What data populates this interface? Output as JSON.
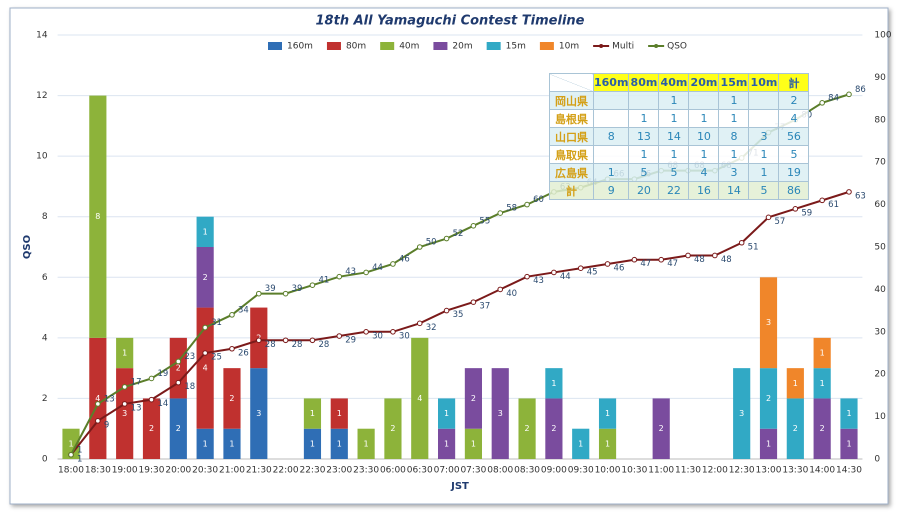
{
  "chart_data": {
    "type": "bar",
    "title": "18th All Yamaguchi Contest Timeline",
    "y_label": "QSO",
    "x_label": "JST",
    "categories": [
      "18:00",
      "18:30",
      "19:00",
      "19:30",
      "20:00",
      "20:30",
      "21:00",
      "21:30",
      "22:00",
      "22:30",
      "23:00",
      "23:30",
      "06:00",
      "06:30",
      "07:00",
      "07:30",
      "08:00",
      "08:30",
      "09:00",
      "09:30",
      "10:00",
      "10:30",
      "11:00",
      "11:30",
      "12:00",
      "12:30",
      "13:00",
      "13:30",
      "14:00",
      "14:30"
    ],
    "series": [
      {
        "name": "160m",
        "color": "#2f6eb5",
        "values": [
          null,
          null,
          null,
          null,
          2,
          1,
          1,
          3,
          null,
          1,
          1,
          null,
          null,
          null,
          null,
          null,
          null,
          null,
          null,
          null,
          null,
          null,
          null,
          null,
          null,
          null,
          null,
          null,
          null,
          null
        ]
      },
      {
        "name": "80m",
        "color": "#c0312f",
        "values": [
          null,
          4,
          3,
          2,
          2,
          4,
          2,
          2,
          null,
          null,
          1,
          null,
          null,
          null,
          null,
          null,
          null,
          null,
          null,
          null,
          null,
          null,
          null,
          null,
          null,
          null,
          null,
          null,
          null,
          null
        ]
      },
      {
        "name": "40m",
        "color": "#8db33a",
        "values": [
          1,
          8,
          1,
          null,
          null,
          null,
          null,
          null,
          null,
          1,
          null,
          1,
          2,
          4,
          null,
          1,
          null,
          2,
          null,
          null,
          1,
          null,
          null,
          null,
          null,
          null,
          null,
          null,
          null,
          null
        ]
      },
      {
        "name": "20m",
        "color": "#7a4c9e",
        "values": [
          null,
          null,
          null,
          null,
          null,
          2,
          null,
          null,
          null,
          null,
          null,
          null,
          null,
          null,
          1,
          2,
          3,
          null,
          2,
          null,
          null,
          null,
          2,
          null,
          null,
          null,
          1,
          null,
          2,
          1
        ]
      },
      {
        "name": "15m",
        "color": "#31a9c5",
        "values": [
          null,
          null,
          null,
          null,
          null,
          1,
          null,
          null,
          null,
          null,
          null,
          null,
          null,
          null,
          1,
          null,
          null,
          null,
          1,
          1,
          1,
          null,
          null,
          null,
          null,
          3,
          2,
          2,
          1,
          1
        ]
      },
      {
        "name": "10m",
        "color": "#f0862a",
        "values": [
          null,
          null,
          null,
          null,
          null,
          null,
          null,
          null,
          null,
          null,
          null,
          null,
          null,
          null,
          null,
          null,
          null,
          null,
          null,
          null,
          null,
          null,
          null,
          null,
          null,
          null,
          3,
          1,
          1,
          null
        ]
      },
      {
        "name": "Multi",
        "type": "line",
        "axis": "y2",
        "color": "#7b1a1a",
        "values": [
          1,
          9,
          13,
          14,
          18,
          25,
          26,
          28,
          28,
          28,
          29,
          30,
          30,
          32,
          35,
          37,
          40,
          43,
          44,
          45,
          46,
          47,
          47,
          48,
          48,
          51,
          57,
          59,
          61,
          63
        ]
      },
      {
        "name": "QSO",
        "type": "line",
        "axis": "y2",
        "color": "#5b7e2a",
        "values": [
          1,
          13,
          17,
          19,
          23,
          31,
          34,
          39,
          39,
          41,
          43,
          44,
          46,
          50,
          52,
          55,
          58,
          60,
          63,
          64,
          66,
          66,
          68,
          68,
          68,
          71,
          77,
          80,
          84,
          86
        ]
      }
    ],
    "ylim": [
      0,
      14
    ],
    "yticks": [
      0,
      2,
      4,
      6,
      8,
      10,
      12,
      14
    ],
    "y2lim": [
      0,
      100
    ],
    "y2ticks": [
      0,
      10,
      20,
      30,
      40,
      50,
      60,
      70,
      80,
      90,
      100
    ],
    "grid": true,
    "legend": "top"
  },
  "table": {
    "header": [
      "160m",
      "80m",
      "40m",
      "20m",
      "15m",
      "10m",
      "計"
    ],
    "rows": [
      [
        "岡山県",
        null,
        null,
        1,
        null,
        1,
        null,
        2
      ],
      [
        "島根県",
        null,
        1,
        1,
        1,
        1,
        null,
        4
      ],
      [
        "山口県",
        8,
        13,
        14,
        10,
        8,
        3,
        56
      ],
      [
        "鳥取県",
        null,
        1,
        1,
        1,
        1,
        1,
        5
      ],
      [
        "広島県",
        1,
        5,
        5,
        4,
        3,
        1,
        19
      ],
      [
        "計",
        9,
        20,
        22,
        16,
        14,
        5,
        86
      ]
    ]
  }
}
